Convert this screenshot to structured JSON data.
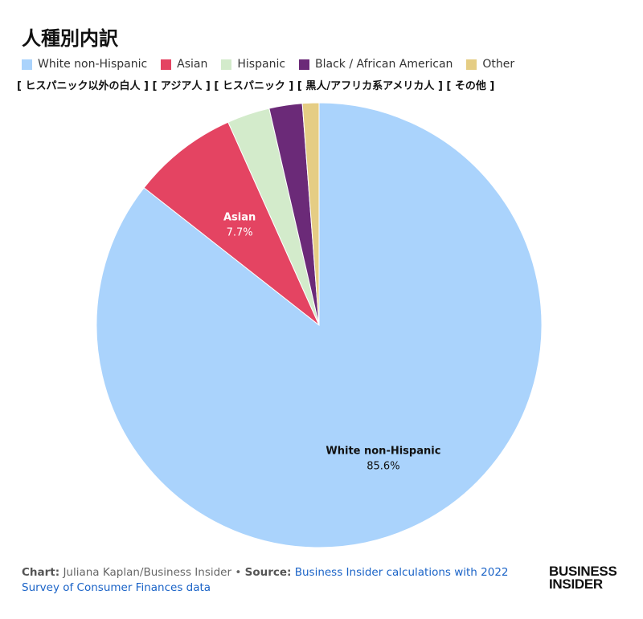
{
  "chart_data": {
    "type": "pie",
    "title": "人種別内訳",
    "subtitle": "[ ヒスパニック以外の白人 ] [ アジア人 ] [ ヒスパニック ] [ 黒人/アフリカ系アメリカ人 ] [ その他 ]",
    "legend_position": "top-left",
    "start_angle": "12 o'clock",
    "direction": "clockwise",
    "slices": [
      {
        "name": "White non-Hispanic",
        "value": 85.6,
        "color": "#aad3fc",
        "label_name": "White non-Hispanic",
        "label_value": "85.6%"
      },
      {
        "name": "Asian",
        "value": 7.7,
        "color": "#e44462",
        "label_name": "Asian",
        "label_value": "7.7%"
      },
      {
        "name": "Hispanic",
        "value": 3.1,
        "color": "#d3ebcb",
        "label_name": "",
        "label_value": ""
      },
      {
        "name": "Black / African American",
        "value": 2.4,
        "color": "#6b2a78",
        "label_name": "",
        "label_value": ""
      },
      {
        "name": "Other",
        "value": 1.2,
        "color": "#e5cd84",
        "label_name": "",
        "label_value": ""
      }
    ]
  },
  "footer": {
    "chart_label": "Chart:",
    "chart_credit": "Juliana Kaplan/Business Insider",
    "separator": "•",
    "source_label": "Source:",
    "source_text": "Business Insider calculations with 2022 Survey of Consumer Finances data"
  },
  "logo": {
    "line1": "BUSINESS",
    "line2": "INSIDER"
  }
}
